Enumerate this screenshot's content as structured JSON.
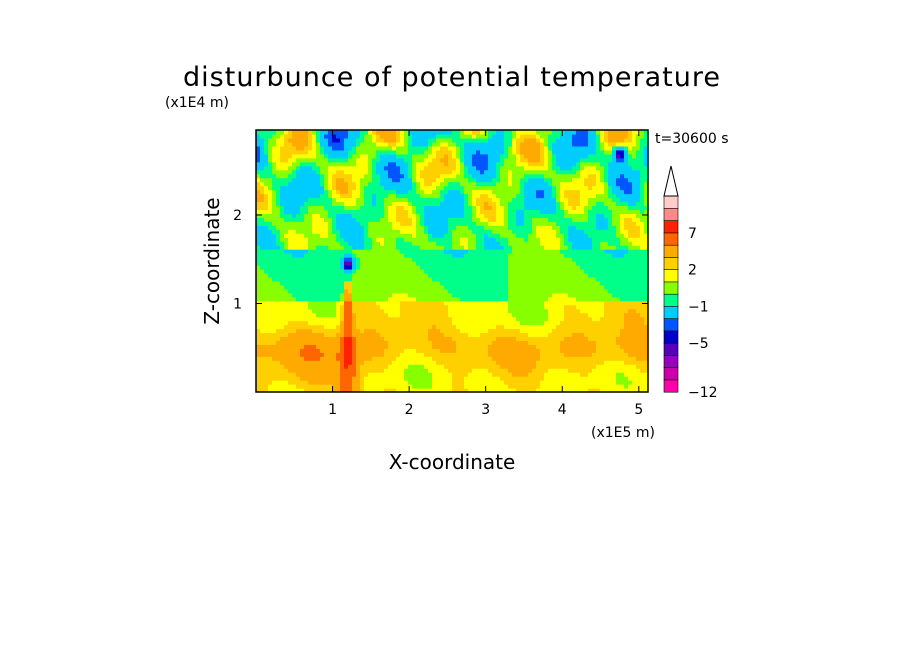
{
  "chart_data": {
    "type": "heatmap",
    "title": "disturbunce of potential temperature",
    "time_label": "t=30600 s",
    "xlabel": "X-coordinate",
    "ylabel": "Z-coordinate",
    "x_unit": "(x1E5 m)",
    "y_unit": "(x1E4 m)",
    "xlim": [
      0,
      5.12
    ],
    "ylim": [
      0,
      2.96
    ],
    "x_ticks": [
      "1",
      "2",
      "3",
      "4",
      "5"
    ],
    "y_ticks": [
      "1",
      "2"
    ],
    "x_tick_values": [
      1,
      2,
      3,
      4,
      5
    ],
    "y_tick_values": [
      1,
      2
    ],
    "colorbar": {
      "levels": [
        -12,
        -11,
        -9,
        -7,
        -5,
        -4,
        -3,
        -1,
        0,
        1,
        2,
        3,
        5,
        7,
        9,
        11
      ],
      "colors": [
        "#ff00aa",
        "#cc00aa",
        "#9900bb",
        "#5500bb",
        "#0000cc",
        "#0055ff",
        "#00ccff",
        "#00ff88",
        "#88ff00",
        "#ffff00",
        "#ffd000",
        "#ffaa00",
        "#ff6600",
        "#ff2200",
        "#ff8888",
        "#ffcccc"
      ],
      "tick_labels": [
        "-12",
        "-5",
        "-1",
        "2",
        "7"
      ],
      "tick_values": [
        -12,
        -5,
        -1,
        2,
        7
      ],
      "extend": "max"
    },
    "grid": false
  }
}
